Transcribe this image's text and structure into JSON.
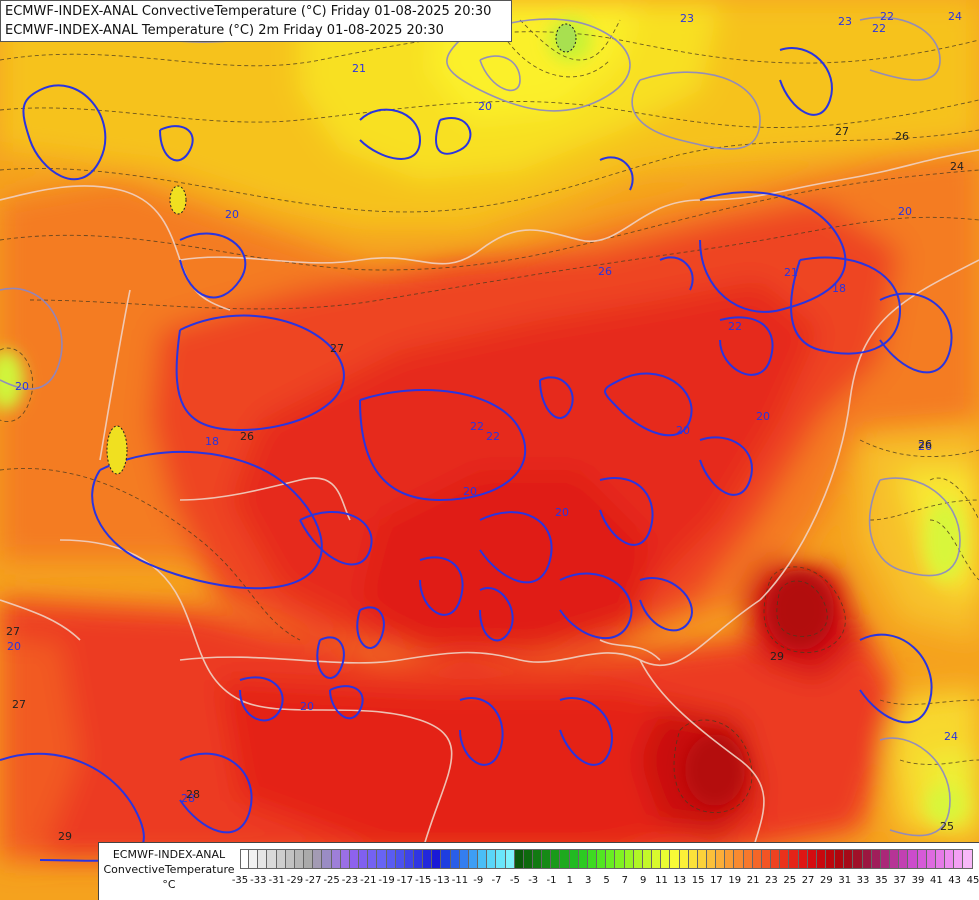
{
  "header": {
    "line1": "ECMWF-INDEX-ANAL ConvectiveTemperature (°C) Friday 01-08-2025 20:30",
    "line2": "ECMWF-INDEX-ANAL Temperature (°C) 2m Friday 01-08-2025 20:30"
  },
  "legend": {
    "model": "ECMWF-INDEX-ANAL",
    "variable": "ConvectiveTemperature",
    "unit": "°C",
    "ticks": [
      "-35",
      "-33",
      "-31",
      "-29",
      "-27",
      "-25",
      "-23",
      "-21",
      "-19",
      "-17",
      "-15",
      "-13",
      "-11",
      "-9",
      "-7",
      "-5",
      "-3",
      "-1",
      "1",
      "3",
      "5",
      "7",
      "9",
      "11",
      "13",
      "15",
      "17",
      "19",
      "21",
      "23",
      "25",
      "27",
      "29",
      "31",
      "33",
      "35",
      "37",
      "39",
      "41",
      "43",
      "45"
    ],
    "colors": [
      "#ffffff",
      "#f2f2f2",
      "#e6e6e6",
      "#dadada",
      "#cecece",
      "#c2c2c2",
      "#b6b6b6",
      "#aaaaaa",
      "#a39bb4",
      "#9a8cc4",
      "#9e7fd8",
      "#9a6fe6",
      "#8e62ee",
      "#8060f0",
      "#7462f2",
      "#6864f4",
      "#5a5cf2",
      "#4c52ee",
      "#3e44e8",
      "#3036e2",
      "#2228dc",
      "#1a1ad6",
      "#1e3ee0",
      "#2a5ee8",
      "#347ef0",
      "#3e9ef4",
      "#4abef6",
      "#5ad6f8",
      "#6ae6fa",
      "#7ef2fc",
      "#0a5a0a",
      "#0e6a0e",
      "#127a12",
      "#168a16",
      "#1a9a1a",
      "#1eaa1e",
      "#22ba22",
      "#2cca22",
      "#3eda22",
      "#52e622",
      "#68ee22",
      "#80f222",
      "#98f424",
      "#b0f626",
      "#c4f82a",
      "#d8fa2e",
      "#eafc32",
      "#f8fa36",
      "#fcf038",
      "#fce23a",
      "#fcd23a",
      "#fcc03a",
      "#fcae38",
      "#fa9c34",
      "#f88a30",
      "#f6782c",
      "#f46628",
      "#f25424",
      "#ee4220",
      "#ea321c",
      "#e42418",
      "#de1614",
      "#d40c10",
      "#c8080e",
      "#bc060c",
      "#b0060e",
      "#a60a18",
      "#a01028",
      "#9c1640",
      "#a01e5a",
      "#aa2878",
      "#b63496",
      "#c240b2",
      "#cc4ccc",
      "#d65ad8",
      "#de6ae0",
      "#e67ae8",
      "#ee8cf0",
      "#f4a0f4",
      "#f8b8f8"
    ]
  },
  "map": {
    "contour_labels_convective": [
      "20",
      "22",
      "21",
      "23",
      "22",
      "26",
      "20",
      "22",
      "18",
      "20",
      "22",
      "20",
      "21",
      "20",
      "18",
      "20",
      "20",
      "20",
      "24",
      "26",
      "28",
      "20",
      "22",
      "20",
      "24",
      "23"
    ],
    "contour_labels_2m": [
      "27",
      "26",
      "27",
      "27",
      "26",
      "24",
      "26",
      "27",
      "28",
      "29",
      "29",
      "25"
    ]
  }
}
